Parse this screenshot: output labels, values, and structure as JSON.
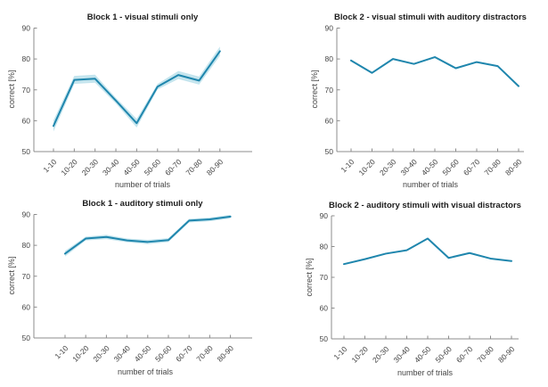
{
  "figure": {
    "background": "#ffffff",
    "line_color": "#1f86ad",
    "band_color": "#c5e5ee",
    "axis_color": "#8c8c8c",
    "tick_label_color": "#454545",
    "title_color": "#1c1c1c"
  },
  "chart_data": [
    {
      "type": "line",
      "title": "Block 1 - visual stimuli only",
      "xlabel": "number of trials",
      "ylabel": "correct [%]",
      "ylim": [
        50,
        90
      ],
      "yticks": [
        50,
        60,
        70,
        80,
        90
      ],
      "grid": false,
      "legend": "none",
      "categories": [
        "1-10",
        "10-20",
        "20-30",
        "30-40",
        "40-50",
        "50-60",
        "60-70",
        "70-80",
        "80-90"
      ],
      "values": [
        58.3,
        73.2,
        73.6,
        66.5,
        59.2,
        71.0,
        74.8,
        73.0,
        82.5
      ],
      "band_halfwidth": [
        1.8,
        1.3,
        1.3,
        0.9,
        1.4,
        0.9,
        1.3,
        1.3,
        1.5
      ]
    },
    {
      "type": "line",
      "title": "Block 2 - visual stimuli with auditory distractors",
      "xlabel": "number of trials",
      "ylabel": "correct [%]",
      "ylim": [
        50,
        90
      ],
      "yticks": [
        50,
        60,
        70,
        80,
        90
      ],
      "grid": false,
      "legend": "none",
      "categories": [
        "1-10",
        "10-20",
        "20-30",
        "30-40",
        "40-50",
        "50-60",
        "60-70",
        "70-80",
        "80-90"
      ],
      "values": [
        79.5,
        75.5,
        80.0,
        78.4,
        80.6,
        77.0,
        79.0,
        77.7,
        71.2
      ],
      "band_halfwidth": []
    },
    {
      "type": "line",
      "title": "Block 1 - auditory stimuli only",
      "xlabel": "number of trials",
      "ylabel": "correct [%]",
      "ylim": [
        50,
        90
      ],
      "yticks": [
        50,
        60,
        70,
        80,
        90
      ],
      "grid": false,
      "legend": "none",
      "categories": [
        "1-10",
        "10-20",
        "20-30",
        "30-40",
        "40-50",
        "50-60",
        "60-70",
        "70-80",
        "80-90"
      ],
      "values": [
        77.3,
        82.2,
        82.7,
        81.6,
        81.1,
        81.7,
        88.0,
        88.4,
        89.3
      ],
      "band_halfwidth": [
        0.9,
        0.6,
        0.7,
        0.6,
        0.7,
        0.6,
        0.6,
        0.6,
        0.6
      ]
    },
    {
      "type": "line",
      "title": "Block 2 - auditory stimuli with visual distractors",
      "xlabel": "number of trials",
      "ylabel": "correct [%]",
      "ylim": [
        50,
        90
      ],
      "yticks": [
        50,
        60,
        70,
        80,
        90
      ],
      "grid": false,
      "legend": "none",
      "categories": [
        "1-10",
        "10-20",
        "20-30",
        "30-40",
        "40-50",
        "50-60",
        "60-70",
        "70-80",
        "80-90"
      ],
      "values": [
        74.3,
        75.9,
        77.7,
        78.8,
        82.6,
        76.3,
        77.9,
        76.1,
        75.3
      ],
      "band_halfwidth": []
    }
  ]
}
